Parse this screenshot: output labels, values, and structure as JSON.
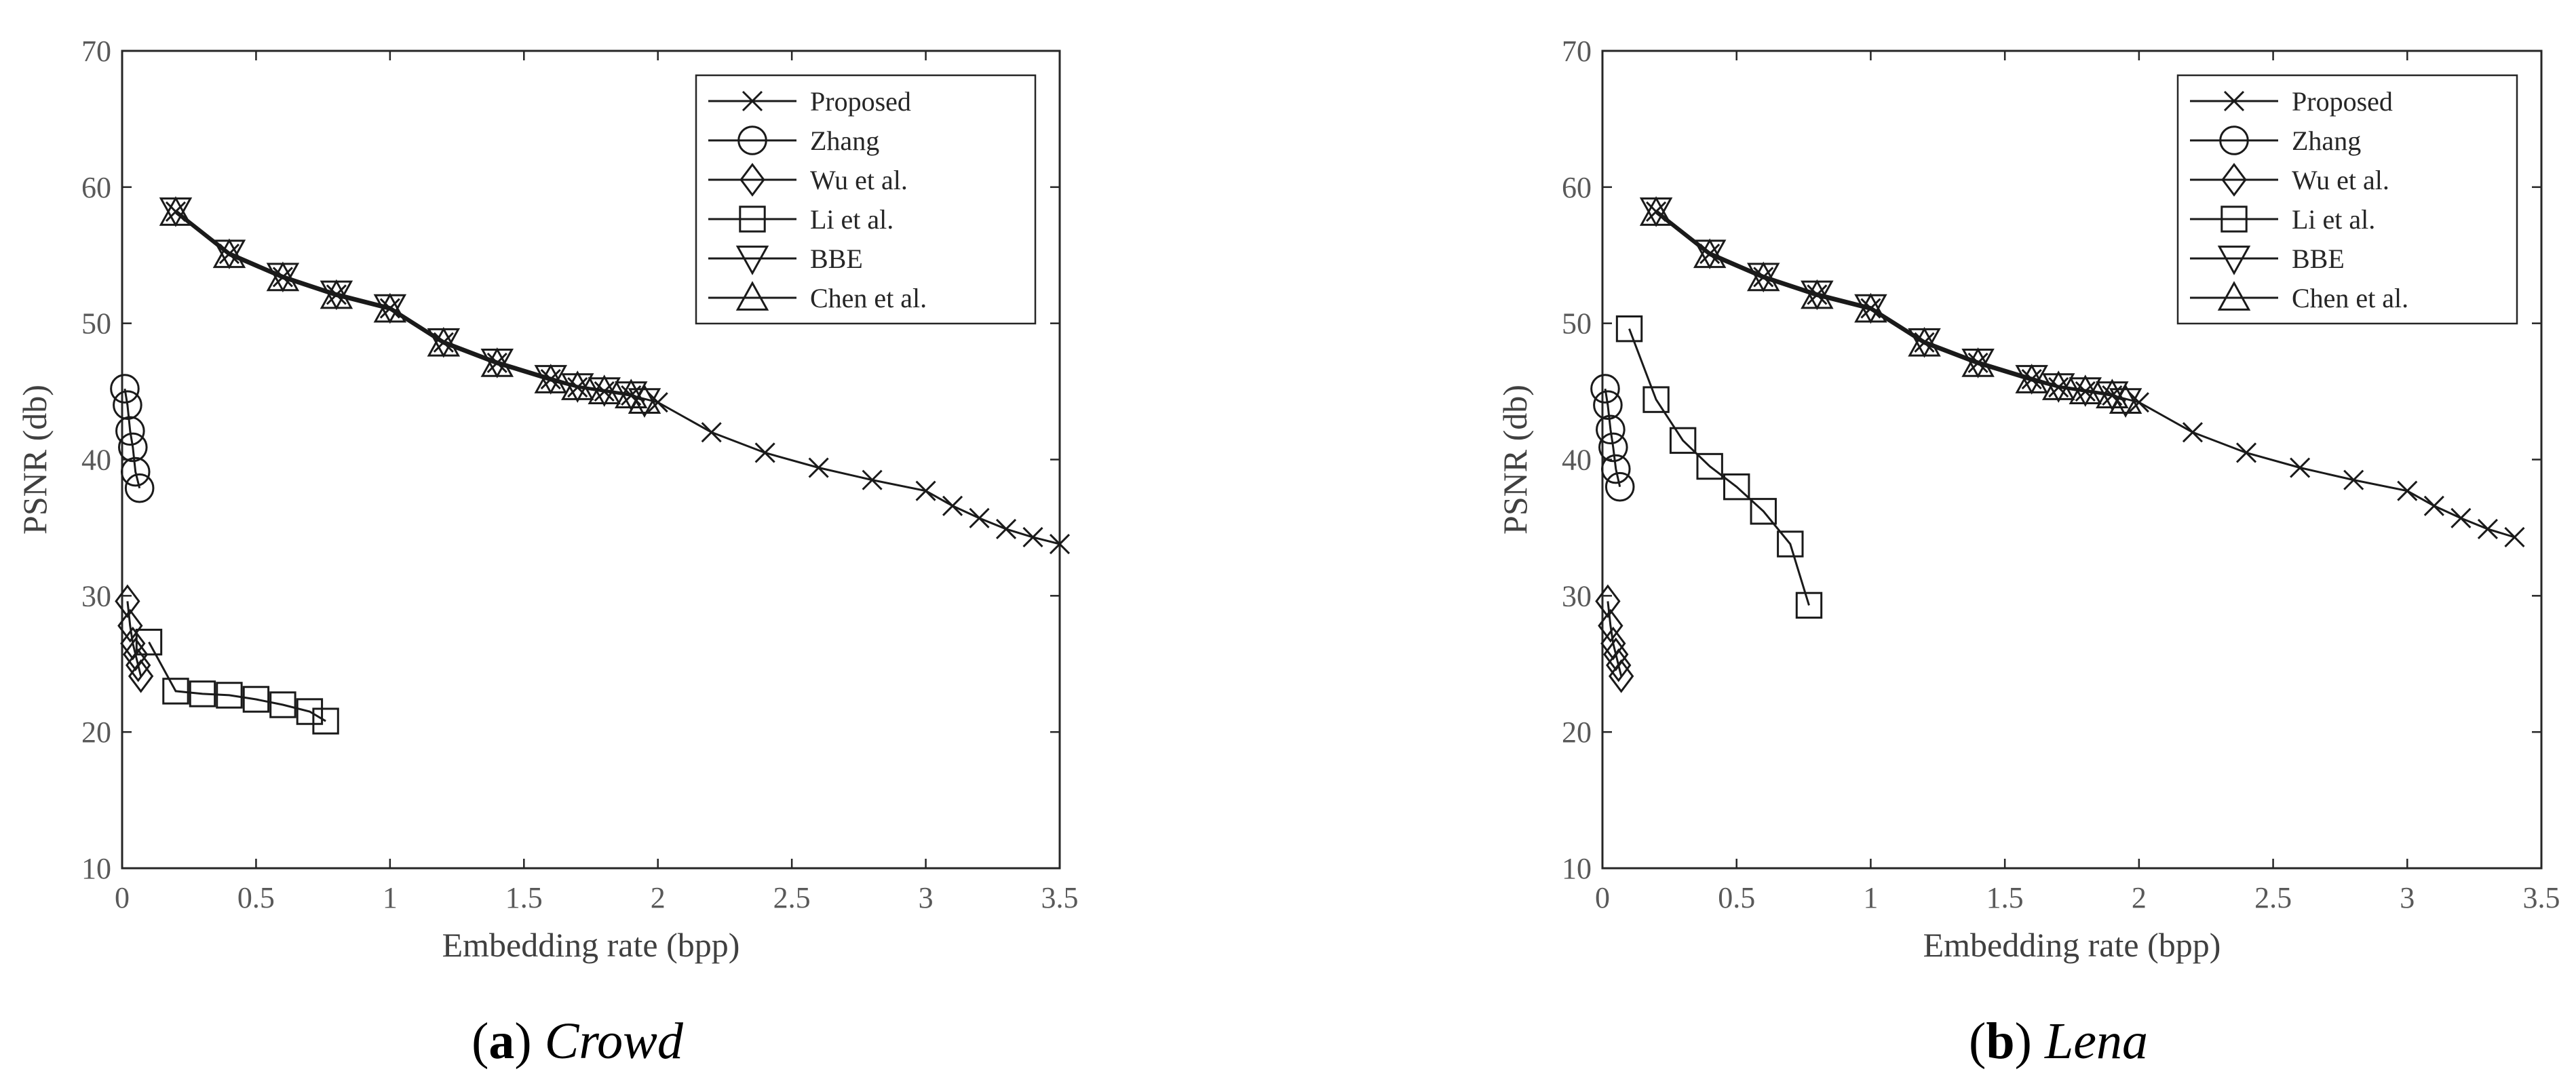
{
  "chart_data": [
    {
      "type": "line",
      "caption_label": "a",
      "caption_name": "Crowd",
      "title": "",
      "xlabel": "Embedding rate (bpp)",
      "ylabel": "PSNR (db)",
      "xlim": [
        0,
        3.5
      ],
      "ylim": [
        10,
        70
      ],
      "xticks": [
        "0",
        "0.5",
        "1",
        "1.5",
        "2",
        "2.5",
        "3",
        "3.5"
      ],
      "yticks": [
        "10",
        "20",
        "30",
        "40",
        "50",
        "60",
        "70"
      ],
      "grid": false,
      "legend_position": "top-right",
      "series": [
        {
          "name": "Proposed",
          "marker": "x",
          "points": [
            [
              0.2,
              58.2
            ],
            [
              0.4,
              55.1
            ],
            [
              0.6,
              53.4
            ],
            [
              0.8,
              52.1
            ],
            [
              1.0,
              51.1
            ],
            [
              1.2,
              48.6
            ],
            [
              1.4,
              47.1
            ],
            [
              1.6,
              45.9
            ],
            [
              1.7,
              45.3
            ],
            [
              1.8,
              45.0
            ],
            [
              1.9,
              44.7
            ],
            [
              2.0,
              44.2
            ],
            [
              2.2,
              42.0
            ],
            [
              2.4,
              40.5
            ],
            [
              2.6,
              39.4
            ],
            [
              2.8,
              38.5
            ],
            [
              3.0,
              37.7
            ],
            [
              3.1,
              36.6
            ],
            [
              3.2,
              35.7
            ],
            [
              3.3,
              34.9
            ],
            [
              3.4,
              34.3
            ],
            [
              3.5,
              33.8
            ]
          ]
        },
        {
          "name": "Zhang",
          "marker": "circle",
          "points": [
            [
              0.01,
              45.2
            ],
            [
              0.02,
              44.0
            ],
            [
              0.03,
              42.1
            ],
            [
              0.04,
              40.9
            ],
            [
              0.05,
              39.1
            ],
            [
              0.065,
              37.9
            ]
          ]
        },
        {
          "name": "Wu et al.",
          "marker": "diamond",
          "points": [
            [
              0.02,
              29.6
            ],
            [
              0.03,
              27.8
            ],
            [
              0.04,
              26.5
            ],
            [
              0.05,
              25.7
            ],
            [
              0.06,
              24.9
            ],
            [
              0.07,
              24.1
            ]
          ]
        },
        {
          "name": "Li et al.",
          "marker": "square",
          "points": [
            [
              0.1,
              26.6
            ],
            [
              0.2,
              23.0
            ],
            [
              0.3,
              22.8
            ],
            [
              0.4,
              22.7
            ],
            [
              0.5,
              22.4
            ],
            [
              0.6,
              22.0
            ],
            [
              0.7,
              21.5
            ],
            [
              0.76,
              20.8
            ]
          ]
        },
        {
          "name": "BBE",
          "marker": "triangle-down",
          "points": [
            [
              0.2,
              58.3
            ],
            [
              0.4,
              55.2
            ],
            [
              0.6,
              53.5
            ],
            [
              0.8,
              52.2
            ],
            [
              1.0,
              51.2
            ],
            [
              1.2,
              48.7
            ],
            [
              1.4,
              47.2
            ],
            [
              1.6,
              46.0
            ],
            [
              1.7,
              45.4
            ],
            [
              1.8,
              45.1
            ],
            [
              1.9,
              44.8
            ],
            [
              1.95,
              44.3
            ]
          ]
        },
        {
          "name": "Chen et al.",
          "marker": "triangle-up",
          "points": [
            [
              0.2,
              58.1
            ],
            [
              0.4,
              55.0
            ],
            [
              0.6,
              53.3
            ],
            [
              0.8,
              52.0
            ],
            [
              1.0,
              51.0
            ],
            [
              1.2,
              48.5
            ],
            [
              1.4,
              47.0
            ],
            [
              1.6,
              45.8
            ],
            [
              1.7,
              45.3
            ],
            [
              1.8,
              45.0
            ],
            [
              1.9,
              44.7
            ],
            [
              1.95,
              44.3
            ]
          ]
        }
      ]
    },
    {
      "type": "line",
      "caption_label": "b",
      "caption_name": "Lena",
      "title": "",
      "xlabel": "Embedding rate (bpp)",
      "ylabel": "PSNR (db)",
      "xlim": [
        0,
        3.5
      ],
      "ylim": [
        10,
        70
      ],
      "xticks": [
        "0",
        "0.5",
        "1",
        "1.5",
        "2",
        "2.5",
        "3",
        "3.5"
      ],
      "yticks": [
        "10",
        "20",
        "30",
        "40",
        "50",
        "60",
        "70"
      ],
      "grid": false,
      "legend_position": "top-right",
      "series": [
        {
          "name": "Proposed",
          "marker": "x",
          "points": [
            [
              0.2,
              58.2
            ],
            [
              0.4,
              55.1
            ],
            [
              0.6,
              53.4
            ],
            [
              0.8,
              52.1
            ],
            [
              1.0,
              51.1
            ],
            [
              1.2,
              48.6
            ],
            [
              1.4,
              47.1
            ],
            [
              1.6,
              45.9
            ],
            [
              1.7,
              45.3
            ],
            [
              1.8,
              45.0
            ],
            [
              1.9,
              44.7
            ],
            [
              2.0,
              44.2
            ],
            [
              2.2,
              42.0
            ],
            [
              2.4,
              40.5
            ],
            [
              2.6,
              39.4
            ],
            [
              2.8,
              38.5
            ],
            [
              3.0,
              37.7
            ],
            [
              3.1,
              36.6
            ],
            [
              3.2,
              35.7
            ],
            [
              3.3,
              34.9
            ],
            [
              3.4,
              34.3
            ]
          ]
        },
        {
          "name": "Zhang",
          "marker": "circle",
          "points": [
            [
              0.01,
              45.2
            ],
            [
              0.02,
              44.0
            ],
            [
              0.03,
              42.2
            ],
            [
              0.04,
              40.9
            ],
            [
              0.05,
              39.3
            ],
            [
              0.065,
              38.0
            ]
          ]
        },
        {
          "name": "Wu et al.",
          "marker": "diamond",
          "points": [
            [
              0.02,
              29.6
            ],
            [
              0.03,
              27.8
            ],
            [
              0.04,
              26.5
            ],
            [
              0.05,
              25.7
            ],
            [
              0.06,
              24.9
            ],
            [
              0.07,
              24.1
            ]
          ]
        },
        {
          "name": "Li et al.",
          "marker": "square",
          "points": [
            [
              0.1,
              49.6
            ],
            [
              0.2,
              44.4
            ],
            [
              0.3,
              41.4
            ],
            [
              0.4,
              39.5
            ],
            [
              0.5,
              38.0
            ],
            [
              0.6,
              36.2
            ],
            [
              0.7,
              33.8
            ],
            [
              0.77,
              29.3
            ]
          ]
        },
        {
          "name": "BBE",
          "marker": "triangle-down",
          "points": [
            [
              0.2,
              58.3
            ],
            [
              0.4,
              55.2
            ],
            [
              0.6,
              53.5
            ],
            [
              0.8,
              52.2
            ],
            [
              1.0,
              51.2
            ],
            [
              1.2,
              48.7
            ],
            [
              1.4,
              47.2
            ],
            [
              1.6,
              46.0
            ],
            [
              1.7,
              45.4
            ],
            [
              1.8,
              45.1
            ],
            [
              1.9,
              44.8
            ],
            [
              1.95,
              44.3
            ]
          ]
        },
        {
          "name": "Chen et al.",
          "marker": "triangle-up",
          "points": [
            [
              0.2,
              58.1
            ],
            [
              0.4,
              55.0
            ],
            [
              0.6,
              53.3
            ],
            [
              0.8,
              52.0
            ],
            [
              1.0,
              51.0
            ],
            [
              1.2,
              48.5
            ],
            [
              1.4,
              47.0
            ],
            [
              1.6,
              45.8
            ],
            [
              1.7,
              45.3
            ],
            [
              1.8,
              45.0
            ],
            [
              1.9,
              44.7
            ],
            [
              1.95,
              44.3
            ]
          ]
        }
      ]
    }
  ]
}
